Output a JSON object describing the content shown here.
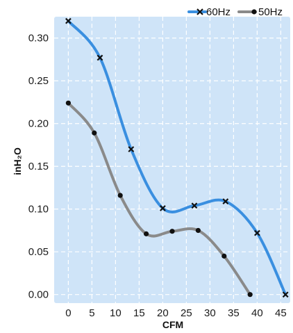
{
  "chart_data": {
    "type": "line",
    "xlabel": "CFM",
    "ylabel": "inH₂O",
    "xlim": [
      -3,
      47
    ],
    "ylim": [
      -0.01,
      0.325
    ],
    "xticks": [
      0,
      5,
      10,
      15,
      20,
      25,
      30,
      35,
      40,
      45
    ],
    "yticks": [
      0.0,
      0.05,
      0.1,
      0.15,
      0.2,
      0.25,
      0.3
    ],
    "ytick_labels": [
      "0.00",
      "0.05",
      "0.10",
      "0.15",
      "0.20",
      "0.25",
      "0.30"
    ],
    "grid": true,
    "legend_position": "top-right",
    "plot_background": "#cfe4f8",
    "series": [
      {
        "name": "60Hz",
        "color": "#3a8fe0",
        "marker": "x",
        "x": [
          0,
          6.7,
          13.3,
          20,
          26.7,
          33.3,
          40,
          46
        ],
        "y": [
          0.32,
          0.277,
          0.17,
          0.101,
          0.104,
          0.109,
          0.072,
          0.0
        ]
      },
      {
        "name": "50Hz",
        "color": "#8a8a8a",
        "marker": "dot",
        "x": [
          0,
          5.5,
          11,
          16.5,
          22,
          27.5,
          33,
          38.5
        ],
        "y": [
          0.224,
          0.189,
          0.116,
          0.071,
          0.074,
          0.075,
          0.045,
          0.0
        ]
      }
    ]
  }
}
